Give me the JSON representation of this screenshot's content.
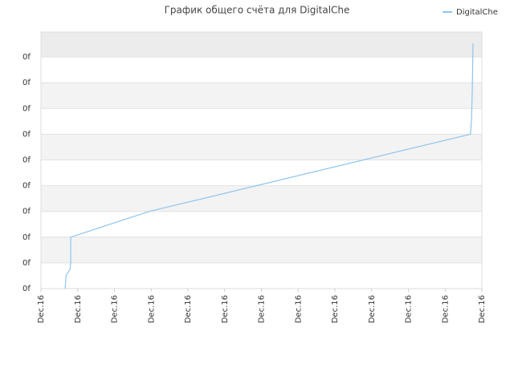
{
  "chart_data": {
    "type": "line",
    "title": "График общего счёта для DigitalChe",
    "x": [
      0.66,
      0.68,
      0.79,
      0.81,
      0.81,
      2.95,
      11.69,
      11.72,
      11.74,
      11.76
    ],
    "series": [
      {
        "name": "DigitalChe",
        "color": "#8ec4ee",
        "values": [
          0,
          0.5,
          0.75,
          1,
          2,
          3,
          6,
          6.63,
          7.81,
          9.53
        ]
      }
    ],
    "xlim": [
      0,
      12
    ],
    "xticks": [
      {
        "value": 0,
        "label": "Dec.16"
      },
      {
        "value": 1,
        "label": "Dec.16"
      },
      {
        "value": 2,
        "label": "Dec.16"
      },
      {
        "value": 3,
        "label": "Dec.16"
      },
      {
        "value": 4,
        "label": "Dec.16"
      },
      {
        "value": 5,
        "label": "Dec.16"
      },
      {
        "value": 6,
        "label": "Dec.16"
      },
      {
        "value": 7,
        "label": "Dec.16"
      },
      {
        "value": 8,
        "label": "Dec.16"
      },
      {
        "value": 9,
        "label": "Dec.16"
      },
      {
        "value": 10,
        "label": "Dec.16"
      },
      {
        "value": 11,
        "label": "Dec.16"
      },
      {
        "value": 12,
        "label": "Dec.16"
      }
    ],
    "ylim": [
      0,
      9.97
    ],
    "yticks": [
      {
        "value": 0,
        "label": "0f"
      },
      {
        "value": 1,
        "label": "0f"
      },
      {
        "value": 2,
        "label": "0f"
      },
      {
        "value": 3,
        "label": "0f"
      },
      {
        "value": 4,
        "label": "0f"
      },
      {
        "value": 5,
        "label": "0f"
      },
      {
        "value": 6,
        "label": "0f"
      },
      {
        "value": 7,
        "label": "0f"
      },
      {
        "value": 8,
        "label": "0f"
      },
      {
        "value": 9,
        "label": "0f"
      }
    ],
    "grid": true,
    "legend": "top-right"
  }
}
